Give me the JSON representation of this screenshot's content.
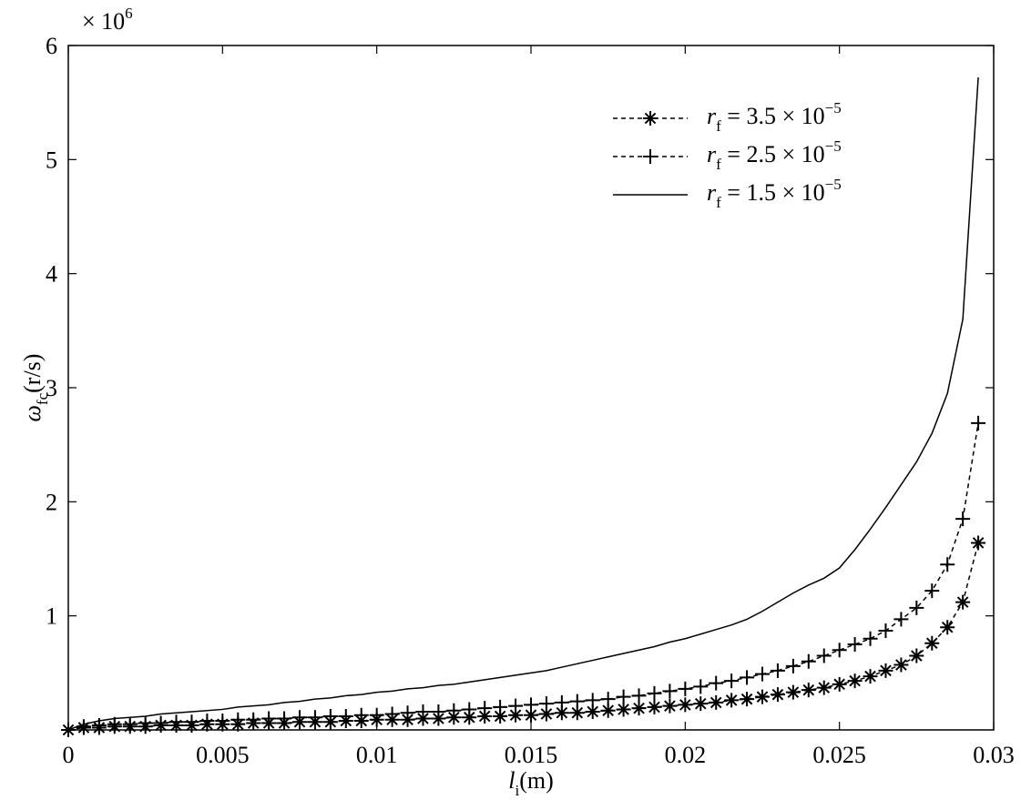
{
  "chart_data": {
    "type": "line",
    "multiplier": "× 106",
    "xlabel": "li(m)",
    "ylabel": "ωfc(r/s)",
    "x": [
      0,
      0.0005,
      0.001,
      0.0015,
      0.002,
      0.0025,
      0.003,
      0.0035,
      0.004,
      0.0045,
      0.005,
      0.0055,
      0.006,
      0.0065,
      0.007,
      0.0075,
      0.008,
      0.0085,
      0.009,
      0.0095,
      0.01,
      0.0105,
      0.011,
      0.0115,
      0.012,
      0.0125,
      0.013,
      0.0135,
      0.014,
      0.0145,
      0.015,
      0.0155,
      0.016,
      0.0165,
      0.017,
      0.0175,
      0.018,
      0.0185,
      0.019,
      0.0195,
      0.02,
      0.0205,
      0.021,
      0.0215,
      0.022,
      0.0225,
      0.023,
      0.0235,
      0.024,
      0.0245,
      0.025,
      0.0255,
      0.026,
      0.0265,
      0.027,
      0.0275,
      0.028,
      0.0285,
      0.029,
      0.0295
    ],
    "series": [
      {
        "name": "rf = 3.5 × 10−5",
        "color": "#000000",
        "dashed": true,
        "marker": "star",
        "values": [
          0,
          0.02,
          0.02,
          0.03,
          0.03,
          0.03,
          0.04,
          0.04,
          0.04,
          0.05,
          0.05,
          0.05,
          0.06,
          0.06,
          0.06,
          0.07,
          0.07,
          0.07,
          0.08,
          0.08,
          0.09,
          0.09,
          0.09,
          0.1,
          0.1,
          0.11,
          0.11,
          0.12,
          0.12,
          0.13,
          0.13,
          0.14,
          0.15,
          0.15,
          0.16,
          0.17,
          0.18,
          0.19,
          0.2,
          0.21,
          0.22,
          0.23,
          0.24,
          0.26,
          0.27,
          0.29,
          0.31,
          0.33,
          0.35,
          0.37,
          0.4,
          0.43,
          0.47,
          0.52,
          0.57,
          0.65,
          0.76,
          0.9,
          1.12,
          1.64
        ]
      },
      {
        "name": "rf = 2.5 × 10−5",
        "color": "#000000",
        "dashed": true,
        "marker": "plus",
        "values": [
          0,
          0.03,
          0.04,
          0.05,
          0.05,
          0.06,
          0.06,
          0.07,
          0.07,
          0.08,
          0.08,
          0.09,
          0.09,
          0.1,
          0.1,
          0.11,
          0.11,
          0.12,
          0.12,
          0.13,
          0.13,
          0.14,
          0.15,
          0.16,
          0.16,
          0.17,
          0.18,
          0.19,
          0.2,
          0.21,
          0.22,
          0.23,
          0.24,
          0.25,
          0.26,
          0.27,
          0.29,
          0.3,
          0.32,
          0.34,
          0.36,
          0.38,
          0.41,
          0.43,
          0.46,
          0.49,
          0.52,
          0.56,
          0.6,
          0.65,
          0.7,
          0.75,
          0.8,
          0.87,
          0.97,
          1.07,
          1.22,
          1.45,
          1.85,
          2.69
        ]
      },
      {
        "name": "rf = 1.5 × 10−5",
        "color": "#000000",
        "dashed": false,
        "marker": "none",
        "values": [
          0,
          0.05,
          0.08,
          0.1,
          0.11,
          0.12,
          0.14,
          0.15,
          0.16,
          0.17,
          0.18,
          0.2,
          0.21,
          0.22,
          0.24,
          0.25,
          0.27,
          0.28,
          0.3,
          0.31,
          0.33,
          0.34,
          0.36,
          0.37,
          0.39,
          0.4,
          0.42,
          0.44,
          0.46,
          0.48,
          0.5,
          0.52,
          0.55,
          0.58,
          0.61,
          0.64,
          0.67,
          0.7,
          0.73,
          0.77,
          0.8,
          0.84,
          0.88,
          0.92,
          0.97,
          1.04,
          1.12,
          1.2,
          1.27,
          1.33,
          1.42,
          1.58,
          1.76,
          1.95,
          2.15,
          2.35,
          2.6,
          2.95,
          3.6,
          5.72
        ]
      }
    ],
    "xlim": [
      0,
      0.03
    ],
    "xticks": [
      0,
      0.005,
      0.01,
      0.015,
      0.02,
      0.025,
      0.03
    ],
    "ylim": [
      0,
      6
    ],
    "yticks": [
      1,
      2,
      3,
      4,
      5,
      6
    ],
    "legend": "upper-right"
  }
}
